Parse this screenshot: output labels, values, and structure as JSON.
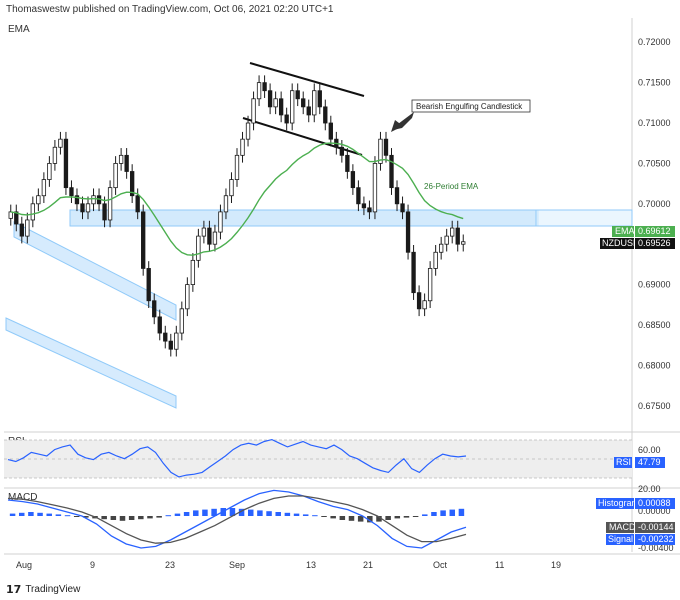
{
  "header": {
    "text": "Thomaswestw published on TradingView.com, Oct 06, 2021 02:20 UTC+1"
  },
  "footer": {
    "logo_mark": "17",
    "logo_text": "TradingView"
  },
  "colors": {
    "bull": "#1a1a1a",
    "ema": "#4caf50",
    "zone": "#bbdefb",
    "zone_edge": "#90caf9",
    "rsi": "#2962ff",
    "macd": "#2962ff",
    "signal": "#555555",
    "hist_pos": "#2962ff",
    "hist_neg": "#444444"
  },
  "chart_data": [
    {
      "type": "candlestick",
      "title": "EMA",
      "series": [
        {
          "name": "NZDUSD",
          "label": "NZDUSD",
          "last": "0.69526",
          "close": [
            0.699,
            0.6975,
            0.696,
            0.698,
            0.7,
            0.701,
            0.703,
            0.705,
            0.707,
            0.708,
            0.702,
            0.701,
            0.7,
            0.699,
            0.7,
            0.701,
            0.7,
            0.698,
            0.702,
            0.705,
            0.706,
            0.704,
            0.701,
            0.699,
            0.692,
            0.688,
            0.686,
            0.684,
            0.683,
            0.682,
            0.684,
            0.687,
            0.69,
            0.693,
            0.696,
            0.697,
            0.695,
            0.6965,
            0.699,
            0.701,
            0.703,
            0.706,
            0.708,
            0.71,
            0.713,
            0.715,
            0.714,
            0.712,
            0.713,
            0.711,
            0.71,
            0.714,
            0.713,
            0.712,
            0.711,
            0.714,
            0.712,
            0.71,
            0.708,
            0.707,
            0.706,
            0.704,
            0.702,
            0.7,
            0.6995,
            0.699,
            0.705,
            0.708,
            0.706,
            0.702,
            0.7,
            0.699,
            0.694,
            0.689,
            0.687,
            0.688,
            0.692,
            0.694,
            0.695,
            0.696,
            0.697,
            0.695,
            0.6953
          ]
        },
        {
          "name": "EMA",
          "label": "EMA",
          "last": "0.69612"
        }
      ],
      "y_ticks": [
        "0.72000",
        "0.71500",
        "0.71000",
        "0.70500",
        "0.70000",
        "0.69500",
        "0.69000",
        "0.68500",
        "0.68000",
        "0.67500"
      ],
      "ylim": [
        0.672,
        0.723
      ],
      "annotations": [
        {
          "text": "Bearish Engulfing Candlestick"
        },
        {
          "text": "26-Period EMA"
        }
      ]
    },
    {
      "type": "line",
      "title": "RSI",
      "series": [
        {
          "name": "RSI",
          "label": "RSI",
          "last": "47.79",
          "values": [
            44,
            42,
            46,
            52,
            50,
            48,
            55,
            58,
            60,
            50,
            46,
            44,
            50,
            52,
            48,
            45,
            50,
            56,
            58,
            52,
            40,
            30,
            25,
            27,
            28,
            30,
            36,
            42,
            48,
            55,
            60,
            62,
            60,
            64,
            66,
            62,
            58,
            61,
            64,
            60,
            58,
            56,
            60,
            55,
            48,
            45,
            40,
            35,
            32,
            30,
            38,
            45,
            34,
            30,
            38,
            45,
            50,
            48,
            47,
            48
          ]
        }
      ],
      "y_ticks": [
        "60.00",
        "20.00"
      ],
      "ylim": [
        15,
        70
      ]
    },
    {
      "type": "bar",
      "title": "MACD",
      "series": [
        {
          "name": "Histogram",
          "label": "Histogram",
          "last": "0.00088",
          "values": [
            0.0003,
            0.0004,
            0.0005,
            0.0004,
            0.0003,
            0.0002,
            0.0001,
            -0.0001,
            -0.0002,
            -0.0003,
            -0.0004,
            -0.0005,
            -0.0006,
            -0.0005,
            -0.0004,
            -0.0003,
            -0.0002,
            0.0001,
            0.0003,
            0.0005,
            0.0007,
            0.0008,
            0.0009,
            0.001,
            0.001,
            0.0009,
            0.0008,
            0.0007,
            0.0006,
            0.0005,
            0.0004,
            0.0003,
            0.0002,
            0.0001,
            -0.0001,
            -0.0003,
            -0.0005,
            -0.0006,
            -0.0007,
            -0.0008,
            -0.0007,
            -0.0005,
            -0.0003,
            -0.0002,
            -0.0001,
            0.0002,
            0.0005,
            0.0007,
            0.0008,
            0.0009
          ]
        },
        {
          "name": "MACD",
          "label": "MACD",
          "last": "-0.00144",
          "values": [
            0.002,
            0.0018,
            0.0015,
            0.001,
            0.0005,
            0.0,
            -0.001,
            -0.0025,
            -0.0035,
            -0.004,
            -0.0038,
            -0.003,
            -0.002,
            -0.001,
            0.0,
            0.001,
            0.002,
            0.0028,
            0.0032,
            0.003,
            0.0025,
            0.0018,
            0.0012,
            0.0008,
            0.0,
            -0.0012,
            -0.0028,
            -0.0038,
            -0.004,
            -0.003,
            -0.002,
            -0.0014
          ]
        },
        {
          "name": "Signal",
          "label": "Signal",
          "last": "-0.00232",
          "values": [
            0.0022,
            0.0021,
            0.0018,
            0.0014,
            0.001,
            0.0005,
            -0.0002,
            -0.0012,
            -0.0022,
            -0.003,
            -0.0034,
            -0.0033,
            -0.0028,
            -0.002,
            -0.0012,
            -0.0002,
            0.0008,
            0.0016,
            0.0022,
            0.0025,
            0.0025,
            0.0022,
            0.0018,
            0.0014,
            0.0008,
            0.0,
            -0.0012,
            -0.0024,
            -0.0032,
            -0.0032,
            -0.0028,
            -0.0023
          ]
        }
      ],
      "y_ticks": [
        "0.00000",
        "-0.00400"
      ],
      "ylim": [
        -0.0045,
        0.003
      ]
    }
  ],
  "x_ticks": [
    "Aug",
    "9",
    "23",
    "Sep",
    "13",
    "21",
    "Oct",
    "11",
    "19"
  ]
}
